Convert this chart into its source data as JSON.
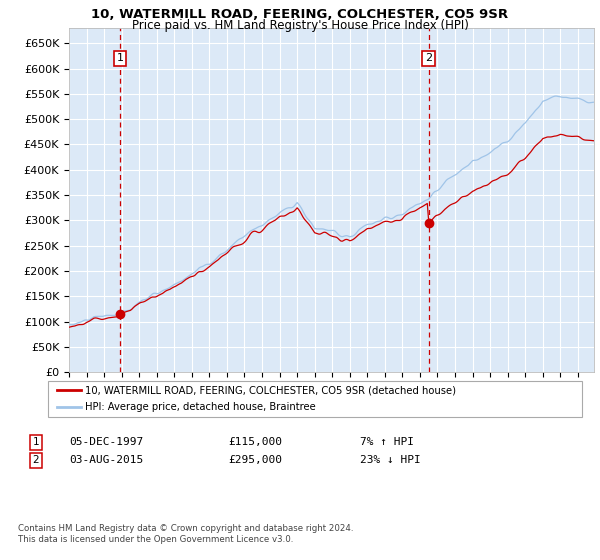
{
  "title1": "10, WATERMILL ROAD, FEERING, COLCHESTER, CO5 9SR",
  "title2": "Price paid vs. HM Land Registry's House Price Index (HPI)",
  "fig_bg": "#ffffff",
  "plot_bg": "#dce9f7",
  "red_line_color": "#cc0000",
  "blue_line_color": "#a0c4e8",
  "vline_color": "#cc0000",
  "grid_color": "#ffffff",
  "ylim": [
    0,
    680000
  ],
  "yticks": [
    0,
    50000,
    100000,
    150000,
    200000,
    250000,
    300000,
    350000,
    400000,
    450000,
    500000,
    550000,
    600000,
    650000
  ],
  "ytick_labels": [
    "£0",
    "£50K",
    "£100K",
    "£150K",
    "£200K",
    "£250K",
    "£300K",
    "£350K",
    "£400K",
    "£450K",
    "£500K",
    "£550K",
    "£600K",
    "£650K"
  ],
  "sale1_idx": 35,
  "sale1_price": 115000,
  "sale1_date_str": "05-DEC-1997",
  "sale1_hpi_pct": "7% ↑ HPI",
  "sale2_idx": 246,
  "sale2_price": 295000,
  "sale2_date_str": "03-AUG-2015",
  "sale2_hpi_pct": "23% ↓ HPI",
  "legend_label1": "10, WATERMILL ROAD, FEERING, COLCHESTER, CO5 9SR (detached house)",
  "legend_label2": "HPI: Average price, detached house, Braintree",
  "footnote": "Contains HM Land Registry data © Crown copyright and database right 2024.\nThis data is licensed under the Open Government Licence v3.0.",
  "start_year": 1995,
  "end_year": 2025,
  "hpi_keypoints_idx": [
    0,
    36,
    60,
    96,
    120,
    156,
    168,
    192,
    204,
    216,
    228,
    240,
    246,
    264,
    276,
    300,
    312,
    324,
    336,
    348,
    359
  ],
  "hpi_keypoints_val": [
    93000,
    120000,
    155000,
    215000,
    270000,
    335000,
    285000,
    270000,
    290000,
    305000,
    315000,
    335000,
    345000,
    390000,
    420000,
    455000,
    490000,
    540000,
    545000,
    540000,
    535000
  ]
}
